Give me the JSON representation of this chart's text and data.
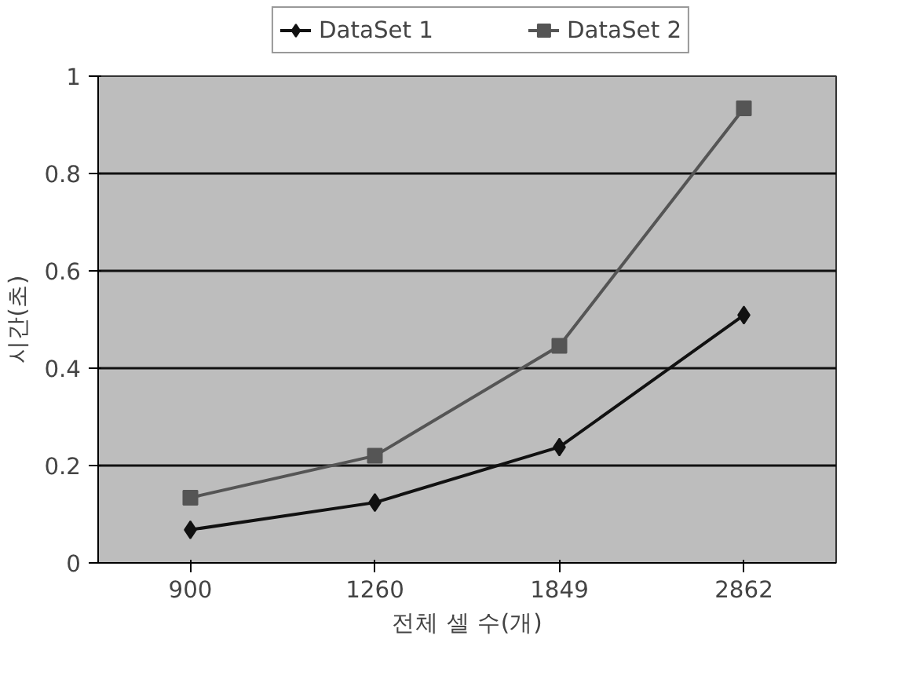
{
  "chart_data": {
    "type": "line",
    "xlabel": "전체 셀 수(개)",
    "ylabel": "시간(초)",
    "categories": [
      "900",
      "1260",
      "1849",
      "2862"
    ],
    "series": [
      {
        "name": "DataSet 1",
        "color": "#111111",
        "marker": "diamond",
        "values": [
          0.068,
          0.124,
          0.238,
          0.509
        ]
      },
      {
        "name": "DataSet 2",
        "color": "#555555",
        "marker": "square",
        "values": [
          0.134,
          0.22,
          0.446,
          0.934
        ]
      }
    ],
    "ylim": [
      0,
      1
    ],
    "yticks": [
      0,
      0.2,
      0.4,
      0.6,
      0.8,
      1
    ],
    "grid": "y",
    "legend": "top",
    "line_style": "solid"
  }
}
